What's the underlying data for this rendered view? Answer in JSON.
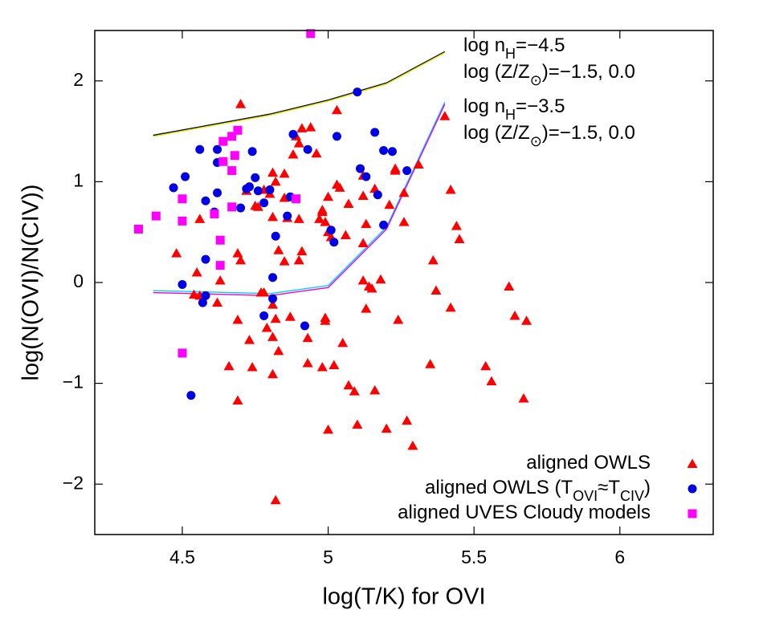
{
  "chart_data": {
    "type": "scatter",
    "xlabel": "log(T/K) for OVI",
    "ylabel": "log(N(OVI)/N(CIV))",
    "xlim": [
      4.2,
      6.32
    ],
    "ylim": [
      -2.5,
      2.5
    ],
    "xticks": [
      4.5,
      5,
      5.5,
      6
    ],
    "yticks": [
      {
        "value": -2,
        "label": "−2"
      },
      {
        "value": -1,
        "label": "−1"
      },
      0,
      1,
      2
    ],
    "legend": "lower right",
    "series": [
      {
        "name": [
          {
            "text": "aligned OWLS"
          }
        ],
        "marker": "triangle",
        "color": "#ff0000",
        "x": [
          4.7,
          5.03,
          4.94,
          4.91,
          4.89,
          4.96,
          4.9,
          4.88,
          4.81,
          4.85,
          4.82,
          4.72,
          4.75,
          4.76,
          4.78,
          4.8,
          4.85,
          4.81,
          4.86,
          4.9,
          4.91,
          4.83,
          4.85,
          4.9,
          4.97,
          4.98,
          5.03,
          5.04,
          5.0,
          4.98,
          4.99,
          5.0,
          5.01,
          5.06,
          5.07,
          5.12,
          5.12,
          5.13,
          5.16,
          5.21,
          5.23,
          5.23,
          5.26,
          5.26,
          5.31,
          5.12,
          5.12,
          5.14,
          5.15,
          5.13,
          5.18,
          5.24,
          5.36,
          5.37,
          5.42,
          5.42,
          5.44,
          5.45,
          5.4,
          4.69,
          4.7,
          4.63,
          4.56,
          4.55,
          4.48,
          4.54,
          4.62,
          4.69,
          4.73,
          4.74,
          4.77,
          4.78,
          4.81,
          4.82,
          4.79,
          4.81,
          4.83,
          4.81,
          4.87,
          4.93,
          4.99,
          4.99,
          5.05,
          4.93,
          5.02,
          4.98,
          5.07,
          5.09,
          5.16,
          5.0,
          5.1,
          5.2,
          5.27,
          5.29,
          5.35,
          5.54,
          5.56,
          5.62,
          5.64,
          5.68,
          5.67,
          4.69,
          4.66,
          4.82,
          4.56
        ],
        "values": [
          1.77,
          1.71,
          1.54,
          1.53,
          1.45,
          1.28,
          1.38,
          1.27,
          1.09,
          1.08,
          1.0,
          0.91,
          0.76,
          0.75,
          0.92,
          0.88,
          0.84,
          0.65,
          0.64,
          0.63,
          0.31,
          0.32,
          0.21,
          0.22,
          0.63,
          0.72,
          0.97,
          0.94,
          0.85,
          0.7,
          0.6,
          0.5,
          0.45,
          0.47,
          0.78,
          1.06,
          0.86,
          0.58,
          0.93,
          0.77,
          1.13,
          1.11,
          0.6,
          0.89,
          1.17,
          0.39,
          0.02,
          -0.04,
          -0.06,
          -0.26,
          0.03,
          -0.37,
          0.22,
          -0.08,
          -0.25,
          0.92,
          0.56,
          0.43,
          1.65,
          0.29,
          0.22,
          0.02,
          -0.13,
          0.1,
          0.29,
          -0.12,
          -0.2,
          -0.37,
          -0.57,
          -0.84,
          -0.1,
          -0.1,
          -0.22,
          -0.36,
          -0.45,
          -0.54,
          -0.68,
          -0.91,
          -0.34,
          -0.55,
          -0.38,
          -0.35,
          -0.6,
          -0.8,
          -0.82,
          -0.84,
          -1.02,
          -1.08,
          -1.07,
          -1.46,
          -1.41,
          -1.45,
          -1.37,
          -1.62,
          -0.81,
          -0.83,
          -0.98,
          -0.04,
          -0.33,
          -0.38,
          -1.15,
          -1.17,
          -0.83,
          -2.16,
          0.63
        ]
      },
      {
        "name": [
          {
            "text": "aligned OWLS (T"
          },
          {
            "text": "OVI",
            "sub": true
          },
          {
            "text": "≈T"
          },
          {
            "text": "CIV",
            "sub": true
          },
          {
            "text": ")"
          }
        ],
        "marker": "circle",
        "color": "#0000e6",
        "x": [
          5.1,
          4.47,
          4.51,
          4.56,
          4.62,
          4.62,
          4.58,
          4.61,
          4.62,
          4.58,
          4.5,
          4.57,
          4.58,
          4.53,
          4.7,
          4.72,
          4.73,
          4.74,
          4.75,
          4.76,
          4.78,
          4.8,
          4.82,
          4.81,
          4.81,
          4.78,
          4.88,
          4.87,
          4.86,
          4.93,
          4.92,
          5.01,
          5.02,
          5.03,
          5.11,
          5.13,
          5.16,
          5.17,
          5.19,
          5.19,
          5.22,
          5.27
        ],
        "values": [
          1.89,
          0.94,
          1.05,
          1.32,
          1.32,
          1.19,
          0.81,
          0.7,
          0.89,
          0.23,
          -0.02,
          -0.2,
          -0.13,
          -1.12,
          0.74,
          0.93,
          0.95,
          1.3,
          1.04,
          0.91,
          0.79,
          0.92,
          0.46,
          0.05,
          -0.16,
          -0.33,
          1.47,
          0.85,
          0.66,
          1.32,
          -0.43,
          0.52,
          0.4,
          1.45,
          1.13,
          1.05,
          1.49,
          0.87,
          0.57,
          1.31,
          1.3,
          1.11
        ]
      },
      {
        "name": [
          {
            "text": "aligned UVES Cloudy models"
          }
        ],
        "marker": "square",
        "color": "#ff00ff",
        "x": [
          4.94,
          4.35,
          4.41,
          4.5,
          4.5,
          4.5,
          4.61,
          4.63,
          4.63,
          4.64,
          4.64,
          4.67,
          4.69,
          4.67,
          4.68,
          4.67,
          4.89
        ],
        "values": [
          2.47,
          0.53,
          0.66,
          0.83,
          0.61,
          -0.7,
          0.68,
          0.42,
          0.17,
          1.4,
          1.2,
          1.45,
          1.51,
          1.11,
          1.26,
          0.75,
          0.83
        ]
      }
    ],
    "curves": [
      {
        "color": "#000000",
        "x": [
          4.4,
          4.8,
          5.0,
          5.2,
          5.4
        ],
        "values": [
          1.46,
          1.67,
          1.81,
          1.98,
          2.29
        ]
      },
      {
        "color": "#e6e600",
        "x": [
          4.4,
          4.8,
          5.0,
          5.2,
          5.4
        ],
        "values": [
          1.45,
          1.66,
          1.8,
          1.97,
          2.28
        ]
      },
      {
        "color": "#00d0ff",
        "x": [
          4.4,
          4.8,
          5.0,
          5.2,
          5.4
        ],
        "values": [
          -0.08,
          -0.11,
          -0.03,
          0.55,
          1.79
        ]
      },
      {
        "color": "#e600e6",
        "x": [
          4.4,
          4.8,
          5.0,
          5.2,
          5.4
        ],
        "values": [
          -0.1,
          -0.13,
          -0.05,
          0.53,
          1.77
        ]
      }
    ],
    "annotations": [
      [
        {
          "text": "log n"
        },
        {
          "text": "H",
          "sub": true
        },
        {
          "text": "=−4.5"
        }
      ],
      [
        {
          "text": "log (Z/Z"
        },
        {
          "text": "⊙",
          "sub": true
        },
        {
          "text": ")=−1.5, 0.0"
        }
      ],
      [
        {
          "text": "log n"
        },
        {
          "text": "H",
          "sub": true
        },
        {
          "text": "=−3.5"
        }
      ],
      [
        {
          "text": "log (Z/Z"
        },
        {
          "text": "⊙",
          "sub": true
        },
        {
          "text": ")=−1.5, 0.0"
        }
      ]
    ]
  }
}
